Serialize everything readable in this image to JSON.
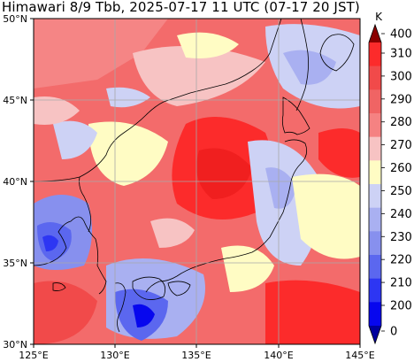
{
  "title": "Himawari 8/9 Tbb, 2025-07-17 11 UTC (07-17 20 JST)",
  "map": {
    "lon_range": [
      125,
      145
    ],
    "lat_range": [
      30,
      50
    ],
    "lon_ticks": [
      "125°E",
      "130°E",
      "135°E",
      "140°E",
      "145°E"
    ],
    "lat_ticks": [
      "50°N",
      "45°N",
      "40°N",
      "35°N",
      "30°N"
    ],
    "grid": true,
    "coastlines": true
  },
  "colorbar": {
    "unit": "K",
    "labels": [
      "400",
      "310",
      "300",
      "290",
      "280",
      "270",
      "260",
      "250",
      "240",
      "230",
      "220",
      "210",
      "200",
      "0"
    ],
    "colors": [
      "#fc2b2b",
      "#f14a4a",
      "#f06464",
      "#f58282",
      "#f7c3c3",
      "#fffcc4",
      "#cdd2f5",
      "#a9b0f1",
      "#8790ee",
      "#5b67ef",
      "#2d36f3",
      "#0707ee"
    ],
    "over_color": "#8b0000",
    "under_color": "#00009e",
    "extend": "both"
  }
}
